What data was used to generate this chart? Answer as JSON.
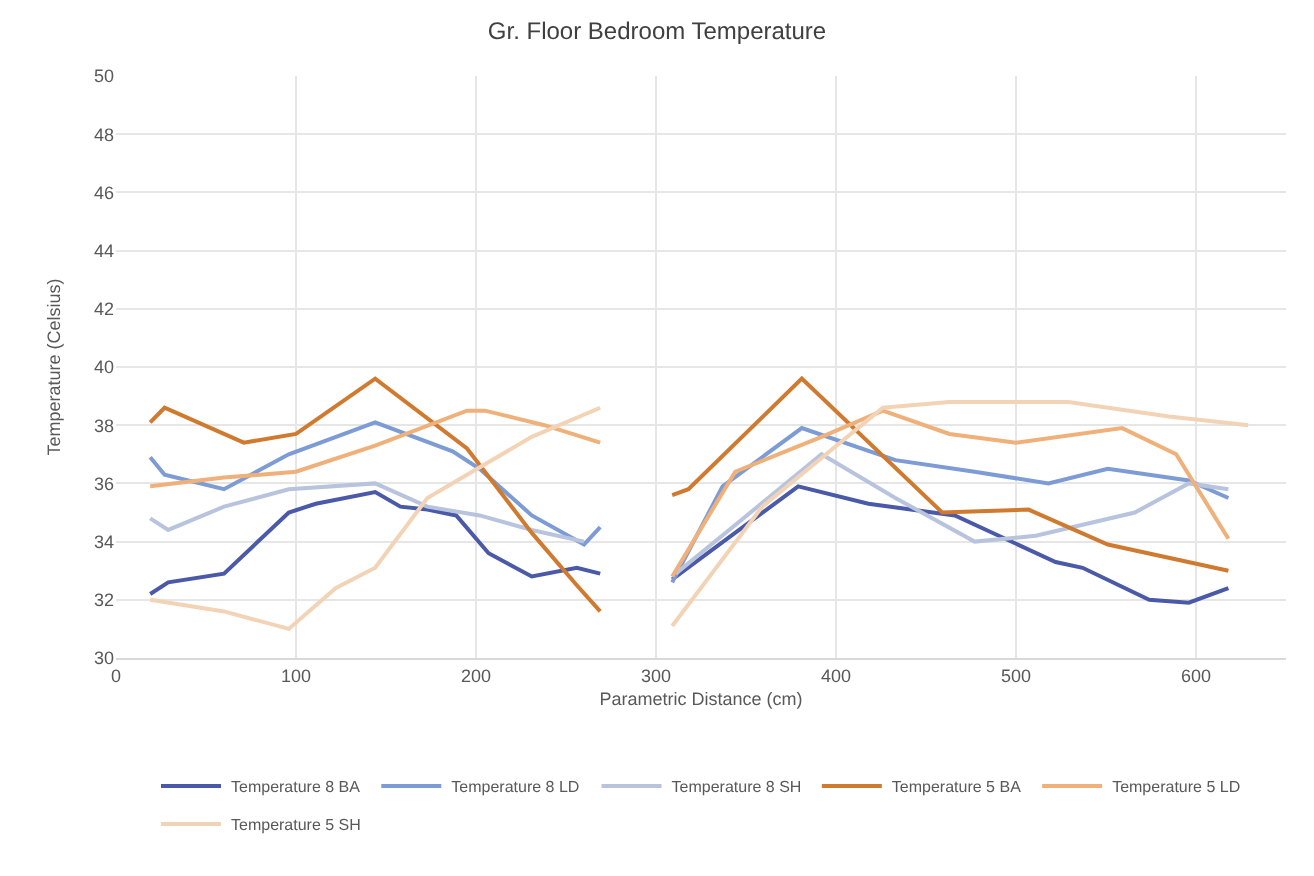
{
  "chart_data": {
    "type": "line",
    "title": "Gr. Floor Bedroom Temperature",
    "xlabel": "Parametric Distance (cm)",
    "ylabel": "Temperature (Celsius)",
    "xlim": [
      0,
      650
    ],
    "xticks": [
      0,
      100,
      200,
      300,
      400,
      500,
      600
    ],
    "ylim": [
      30,
      50
    ],
    "yticks": [
      30,
      32,
      34,
      36,
      38,
      40,
      42,
      44,
      46,
      48,
      50
    ],
    "grid": true,
    "legend": "bottom",
    "marker": "none",
    "line_style": "solid",
    "series": [
      {
        "name": "Temperature 8 BA",
        "color": "#4a5aa8",
        "x": [
          19,
          29,
          60,
          96,
          111,
          144,
          158,
          173,
          189,
          207,
          231,
          256,
          269,
          290,
          309,
          379,
          418,
          466,
          522,
          537,
          574,
          596,
          618
        ],
        "values": [
          32.2,
          32.6,
          32.9,
          35.0,
          35.3,
          35.7,
          35.2,
          35.1,
          34.9,
          33.6,
          32.8,
          33.1,
          32.9,
          null,
          32.7,
          35.9,
          35.3,
          34.9,
          33.3,
          33.1,
          32.0,
          31.9,
          32.4
        ]
      },
      {
        "name": "Temperature 8 LD",
        "color": "#7d9bd4",
        "x": [
          19,
          27,
          60,
          96,
          144,
          187,
          202,
          231,
          260,
          269,
          290,
          309,
          337,
          381,
          433,
          477,
          518,
          551,
          596,
          618
        ],
        "values": [
          36.9,
          36.3,
          35.8,
          37.0,
          38.1,
          37.1,
          36.5,
          34.9,
          33.9,
          34.5,
          null,
          32.6,
          35.9,
          37.9,
          36.8,
          36.4,
          36.0,
          36.5,
          36.1,
          35.5
        ]
      },
      {
        "name": "Temperature 8 SH",
        "color": "#b8c4de",
        "x": [
          19,
          29,
          60,
          96,
          144,
          173,
          202,
          231,
          260,
          290,
          311,
          392,
          433,
          477,
          511,
          566,
          596,
          618
        ],
        "values": [
          34.8,
          34.4,
          35.2,
          35.8,
          36.0,
          35.2,
          34.9,
          34.4,
          34.0,
          null,
          32.9,
          37.0,
          35.5,
          34.0,
          34.2,
          35.0,
          36.0,
          35.8
        ]
      },
      {
        "name": "Temperature 5 BA",
        "color": "#d07a30",
        "x": [
          19,
          27,
          71,
          100,
          144,
          195,
          231,
          256,
          269,
          290,
          309,
          318,
          381,
          459,
          507,
          551,
          618
        ],
        "values": [
          38.1,
          38.6,
          37.4,
          37.7,
          39.6,
          37.2,
          34.3,
          32.5,
          31.6,
          null,
          35.6,
          35.8,
          39.6,
          35.0,
          35.1,
          33.9,
          33.0
        ]
      },
      {
        "name": "Temperature 5 LD",
        "color": "#f0b07a",
        "x": [
          19,
          60,
          100,
          144,
          195,
          205,
          238,
          269,
          290,
          309,
          344,
          392,
          426,
          463,
          500,
          559,
          589,
          618
        ],
        "values": [
          35.9,
          36.2,
          36.4,
          37.3,
          38.5,
          38.5,
          38.0,
          37.4,
          null,
          32.8,
          36.4,
          37.6,
          38.5,
          37.7,
          37.4,
          37.9,
          37.0,
          34.1
        ]
      },
      {
        "name": "Temperature 5 SH",
        "color": "#f3d3b6",
        "x": [
          19,
          60,
          96,
          122,
          144,
          173,
          195,
          231,
          269,
          290,
          309,
          359,
          426,
          463,
          529,
          585,
          629
        ],
        "values": [
          32.0,
          31.6,
          31.0,
          32.4,
          33.1,
          35.5,
          36.3,
          37.6,
          38.6,
          null,
          31.1,
          35.2,
          38.6,
          38.8,
          38.8,
          38.3,
          38.0
        ]
      }
    ]
  }
}
